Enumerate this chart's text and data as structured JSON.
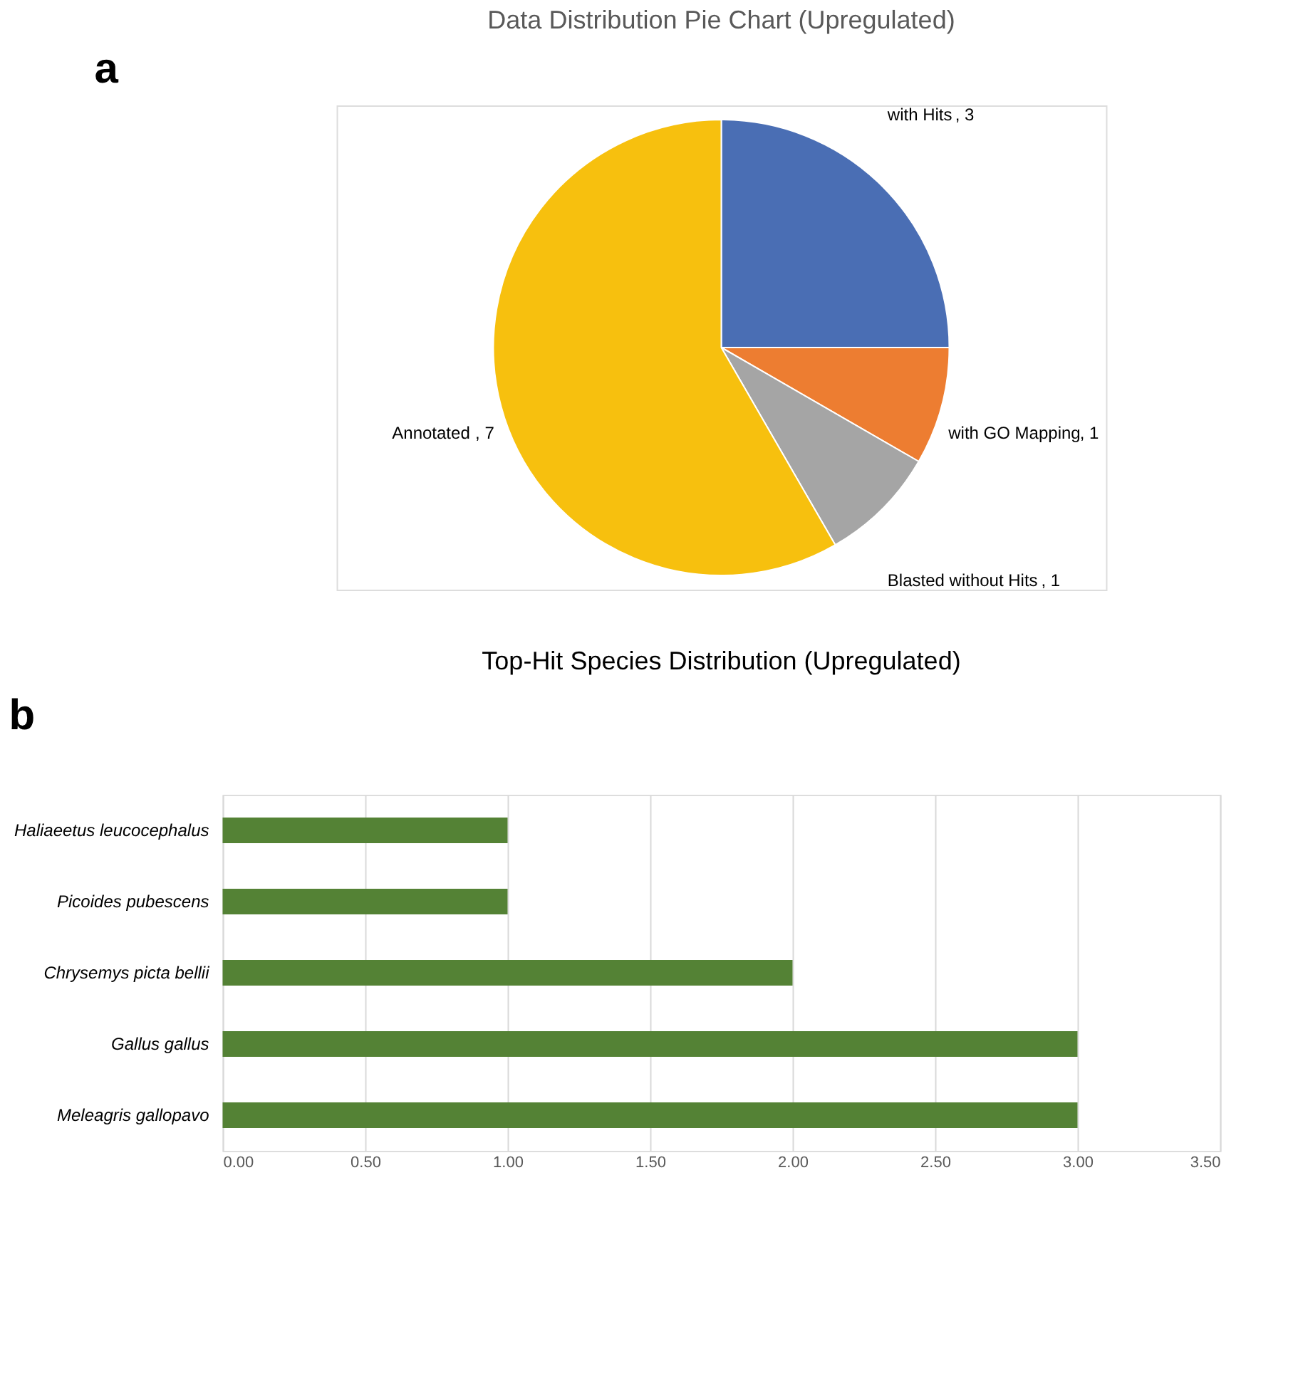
{
  "chart_data": [
    {
      "type": "pie",
      "title": "Data Distribution Pie Chart (Upregulated)",
      "annotations": [
        "a"
      ],
      "categories": [
        "with Hits",
        "with GO Mapping",
        "Blasted without Hits",
        "Annotated"
      ],
      "values": [
        3,
        1,
        1,
        7
      ],
      "value_labels": [
        ", 3",
        ", 1",
        ", 1",
        ", 7"
      ],
      "colors": [
        "#4a6eb4",
        "#ed7d31",
        "#a5a5a5",
        "#f7c00e"
      ],
      "legend": false
    },
    {
      "type": "bar",
      "orientation": "horizontal",
      "title": "Top-Hit Species Distribution (Upregulated)",
      "annotations": [
        "b"
      ],
      "categories": [
        "Haliaeetus leucocephalus",
        "Picoides pubescens",
        "Chrysemys picta bellii",
        "Gallus gallus",
        "Meleagris gallopavo"
      ],
      "values": [
        1,
        1,
        2,
        3,
        3
      ],
      "color": "#548235",
      "xlim": [
        0,
        3.5
      ],
      "xticks": [
        {
          "value": 0,
          "label": "0.00"
        },
        {
          "value": 0.5,
          "label": "0.50"
        },
        {
          "value": 1,
          "label": "1.00"
        },
        {
          "value": 1.5,
          "label": "1.50"
        },
        {
          "value": 2,
          "label": "2.00"
        },
        {
          "value": 2.5,
          "label": "2.50"
        },
        {
          "value": 3,
          "label": "3.00"
        },
        {
          "value": 3.5,
          "label": "3.50"
        }
      ],
      "grid": "x",
      "legend": false
    }
  ]
}
